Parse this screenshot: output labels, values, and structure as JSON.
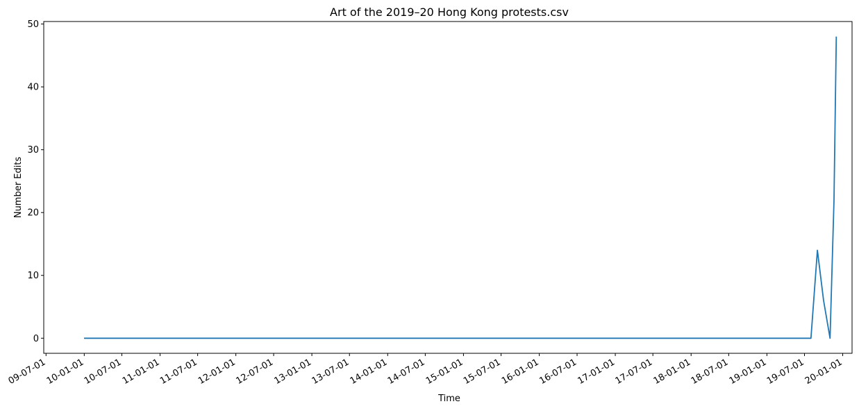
{
  "chart_data": {
    "type": "line",
    "title": "Art of the 2019–20 Hong Kong protests.csv",
    "xlabel": "Time",
    "ylabel": "Number Edits",
    "line_color": "#1f77b4",
    "ylim": [
      -2.4,
      50.4
    ],
    "y_ticks": [
      0,
      10,
      20,
      30,
      40,
      50
    ],
    "x_range": [
      "2009-06-20",
      "2020-02-15"
    ],
    "x_ticks": [
      {
        "date": "2009-07-01",
        "label": "09-07-01"
      },
      {
        "date": "2010-01-01",
        "label": "10-01-01"
      },
      {
        "date": "2010-07-01",
        "label": "10-07-01"
      },
      {
        "date": "2011-01-01",
        "label": "11-01-01"
      },
      {
        "date": "2011-07-01",
        "label": "11-07-01"
      },
      {
        "date": "2012-01-01",
        "label": "12-01-01"
      },
      {
        "date": "2012-07-01",
        "label": "12-07-01"
      },
      {
        "date": "2013-01-01",
        "label": "13-01-01"
      },
      {
        "date": "2013-07-01",
        "label": "13-07-01"
      },
      {
        "date": "2014-01-01",
        "label": "14-01-01"
      },
      {
        "date": "2014-07-01",
        "label": "14-07-01"
      },
      {
        "date": "2015-01-01",
        "label": "15-01-01"
      },
      {
        "date": "2015-07-01",
        "label": "15-07-01"
      },
      {
        "date": "2016-01-01",
        "label": "16-01-01"
      },
      {
        "date": "2016-07-01",
        "label": "16-07-01"
      },
      {
        "date": "2017-01-01",
        "label": "17-01-01"
      },
      {
        "date": "2017-07-01",
        "label": "17-07-01"
      },
      {
        "date": "2018-01-01",
        "label": "18-01-01"
      },
      {
        "date": "2018-07-01",
        "label": "18-07-01"
      },
      {
        "date": "2019-01-01",
        "label": "19-01-01"
      },
      {
        "date": "2019-07-01",
        "label": "19-07-01"
      },
      {
        "date": "2020-01-01",
        "label": "20-01-01"
      }
    ],
    "series": [
      {
        "x": [
          "2009-12-31",
          "2019-08-01",
          "2019-09-01",
          "2019-10-01",
          "2019-11-01",
          "2019-11-20",
          "2019-12-01"
        ],
        "y": [
          0,
          0,
          14,
          6,
          0,
          22,
          48
        ]
      }
    ]
  }
}
